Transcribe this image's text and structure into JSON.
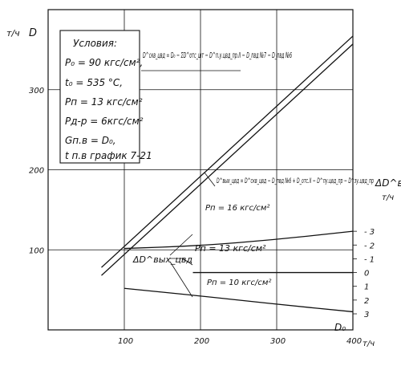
{
  "chart_data": {
    "type": "line",
    "xlabel": "D₀",
    "x_unit_label": "т/ч",
    "ylabel_left": "D",
    "y_unit_label_left": "т/ч",
    "ylabel_right": "ΔD^вых_цвд",
    "y_unit_label_right": "т/ч",
    "xlim": [
      0,
      400
    ],
    "ylim_left": [
      0,
      400
    ],
    "ylim_right": [
      3,
      -4
    ],
    "x_ticks": [
      "100",
      "200",
      "300",
      "400"
    ],
    "y_ticks_left": [
      "100",
      "200",
      "300"
    ],
    "y_ticks_right": [
      "3",
      "2",
      "1",
      "0",
      "1",
      "2",
      "3"
    ],
    "conditions": {
      "title": "Условия:",
      "lines": [
        "P₀ = 90 кгс/см²,",
        "t₀ = 535 °C,",
        "Pп = 13 кгс/см²",
        "Pд-р = 6кгс/см²",
        "Gп.в = D₀,",
        "t п.в график 7-21"
      ]
    },
    "annotations": {
      "upper_line_formula": "D^скв_цвд = D₀ − ΣD^отс_шт − D^п.у.цвд_пр.II − D_пвд №7 − D_пвд №6",
      "lower_line_formula": "D^вых_цвд = D^скв_цвд − D_пвд №6 + D_отс.II − D^пу.цвд_пр − D^зу.цвд_пр",
      "delta_label": "ΔD^вых_цвд",
      "p16": "Pп = 16 кгс/см²",
      "p13": "Pп = 13 кгс/см²",
      "p10": "Pп = 10 кгс/см²"
    },
    "series": [
      {
        "axis": "left",
        "x": [
          70,
          400
        ],
        "y": [
          78,
          367
        ]
      },
      {
        "axis": "left",
        "x": [
          70,
          400
        ],
        "y": [
          68,
          357
        ]
      },
      {
        "axis": "right",
        "name": "Pп = 16 кгс/см²",
        "x": [
          100,
          200,
          300,
          400
        ],
        "y": [
          -1.75,
          -1.95,
          -2.4,
          -3.0
        ]
      },
      {
        "axis": "right",
        "name": "Pп = 13 кгс/см²",
        "x": [
          190,
          400
        ],
        "y": [
          0.0,
          0.0
        ]
      },
      {
        "axis": "right",
        "name": "Pп = 10 кгс/см²",
        "x": [
          100,
          200,
          300,
          400
        ],
        "y": [
          1.15,
          1.7,
          2.3,
          2.85
        ]
      }
    ]
  }
}
